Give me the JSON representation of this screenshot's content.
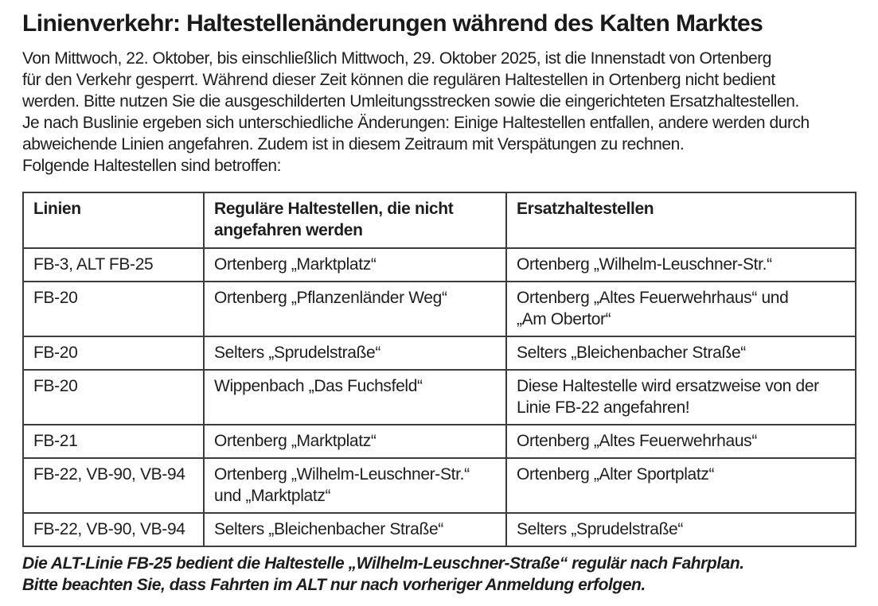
{
  "colors": {
    "text": "#1d1d1d",
    "table_border": "#3c3c3c",
    "background": "#ffffff"
  },
  "title": "Linienverkehr: Haltestellenänderungen während des Kalten Marktes",
  "intro": {
    "lines": [
      "Von Mittwoch, 22. Oktober, bis einschließlich Mittwoch, 29. Oktober 2025, ist die Innenstadt von Ortenberg",
      "für den Verkehr gesperrt. Während dieser Zeit können die regulären Haltestellen in Ortenberg nicht bedient",
      "werden. Bitte nutzen Sie die ausgeschilderten Umleitungsstrecken sowie die eingerichteten Ersatzhaltestellen.",
      "Je nach Buslinie ergeben sich unterschiedliche Änderungen: Einige Haltestellen entfallen, andere werden durch",
      "abweichende Linien angefahren. Zudem ist in diesem Zeitraum mit Verspätungen zu rechnen.",
      "Folgende Haltestellen sind betroffen:"
    ]
  },
  "table": {
    "headers": [
      "Linien",
      "Reguläre Haltestellen, die nicht\nangefahren werden",
      "Ersatzhaltestellen"
    ],
    "rows": [
      [
        "FB-3, ALT FB-25",
        "Ortenberg „Marktplatz“",
        "Ortenberg „Wilhelm-Leuschner-Str.“"
      ],
      [
        "FB-20",
        "Ortenberg „Pflanzenländer Weg“",
        "Ortenberg „Altes Feuerwehrhaus“ und\n„Am Obertor“"
      ],
      [
        "FB-20",
        "Selters „Sprudelstraße“",
        "Selters „Bleichenbacher Straße“"
      ],
      [
        "FB-20",
        "Wippenbach „Das Fuchsfeld“",
        "Diese Haltestelle wird ersatzweise von der\nLinie FB-22 angefahren!"
      ],
      [
        "FB-21",
        "Ortenberg „Marktplatz“",
        "Ortenberg „Altes Feuerwehrhaus“"
      ],
      [
        "FB-22, VB-90, VB-94",
        "Ortenberg „Wilhelm-Leuschner-Str.“\nund „Marktplatz“",
        "Ortenberg „Alter Sportplatz“"
      ],
      [
        "FB-22, VB-90, VB-94",
        "Selters „Bleichenbacher Straße“",
        "Selters „Sprudelstraße“"
      ]
    ]
  },
  "footnote": {
    "lines": [
      "Die ALT-Linie FB-25 bedient die Haltestelle „Wilhelm-Leuschner-Straße“ regulär nach Fahrplan.",
      "Bitte beachten Sie, dass Fahrten im ALT nur nach vorheriger Anmeldung erfolgen."
    ]
  }
}
